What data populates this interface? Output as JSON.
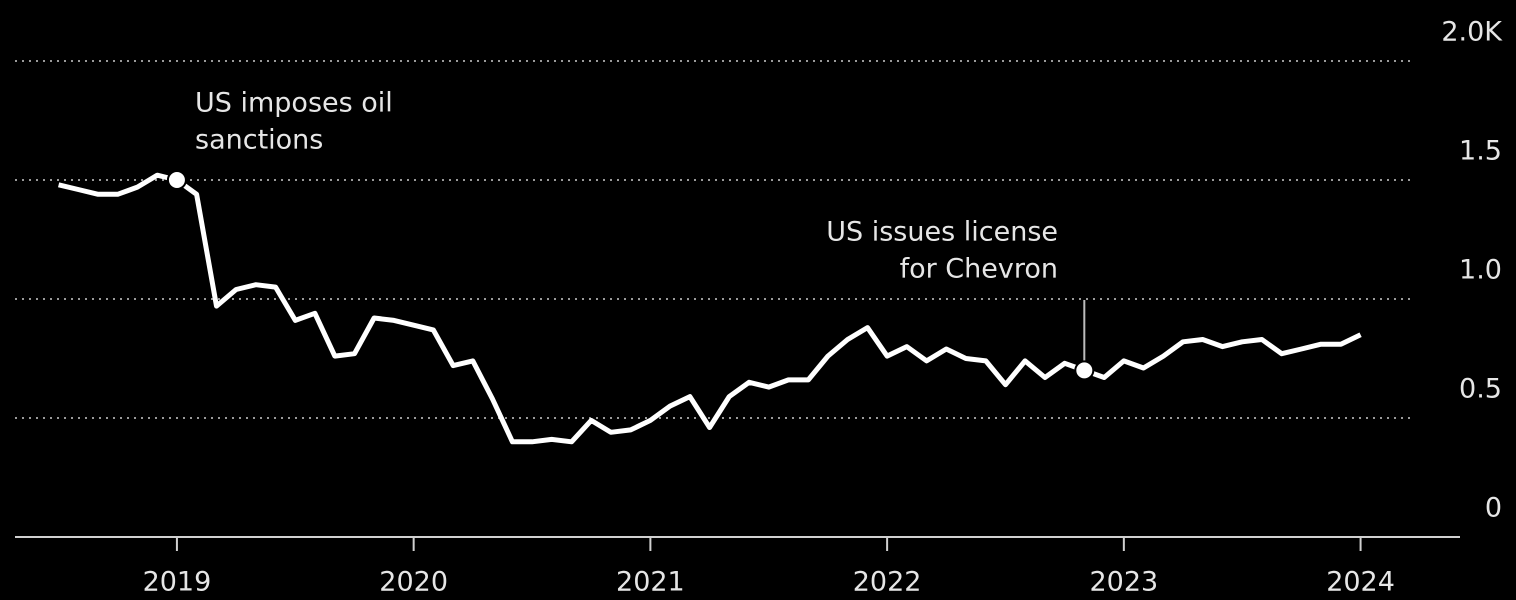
{
  "chart_data": {
    "type": "line",
    "x": [
      2018.5,
      2018.583,
      2018.667,
      2018.75,
      2018.833,
      2018.917,
      2019,
      2019.083,
      2019.167,
      2019.25,
      2019.333,
      2019.417,
      2019.5,
      2019.583,
      2019.667,
      2019.75,
      2019.833,
      2019.917,
      2020,
      2020.083,
      2020.167,
      2020.25,
      2020.333,
      2020.417,
      2020.5,
      2020.583,
      2020.667,
      2020.75,
      2020.833,
      2020.917,
      2021,
      2021.083,
      2021.167,
      2021.25,
      2021.333,
      2021.417,
      2021.5,
      2021.583,
      2021.667,
      2021.75,
      2021.833,
      2021.917,
      2022,
      2022.083,
      2022.167,
      2022.25,
      2022.333,
      2022.417,
      2022.5,
      2022.583,
      2022.667,
      2022.75,
      2022.833,
      2022.917,
      2023,
      2023.083,
      2023.167,
      2023.25,
      2023.333,
      2023.417,
      2023.5,
      2023.583,
      2023.667,
      2023.75,
      2023.833,
      2023.917,
      2024
    ],
    "series": [
      {
        "color": "#ffffff",
        "values": [
          1.48,
          1.46,
          1.44,
          1.44,
          1.47,
          1.52,
          1.5,
          1.44,
          0.97,
          1.04,
          1.06,
          1.05,
          0.91,
          0.94,
          0.76,
          0.77,
          0.92,
          0.91,
          0.89,
          0.87,
          0.72,
          0.74,
          0.58,
          0.4,
          0.4,
          0.41,
          0.4,
          0.49,
          0.44,
          0.45,
          0.49,
          0.55,
          0.59,
          0.46,
          0.59,
          0.65,
          0.63,
          0.66,
          0.66,
          0.76,
          0.83,
          0.88,
          0.76,
          0.8,
          0.74,
          0.79,
          0.75,
          0.74,
          0.64,
          0.74,
          0.67,
          0.73,
          0.7,
          0.67,
          0.74,
          0.71,
          0.76,
          0.82,
          0.83,
          0.8,
          0.82,
          0.83,
          0.77,
          0.79,
          0.81,
          0.81,
          0.85
        ]
      }
    ],
    "xlim": [
      2018.316,
      2024.42
    ],
    "xticks": [
      2019,
      2020,
      2021,
      2022,
      2023,
      2024
    ],
    "ylim": [
      0,
      2
    ],
    "yticks": [
      0,
      0.5,
      {
        "value": 1,
        "label": "1.0"
      },
      1.5,
      {
        "value": 2,
        "label": "2.0K"
      }
    ],
    "grid": true,
    "annotations": [
      {
        "lines": [
          "US imposes oil",
          "sanctions"
        ],
        "x": 2019,
        "y": 1.5
      },
      {
        "lines": [
          "US issues license",
          "for Chevron"
        ],
        "x": 2022.833,
        "y": 0.7
      }
    ]
  }
}
